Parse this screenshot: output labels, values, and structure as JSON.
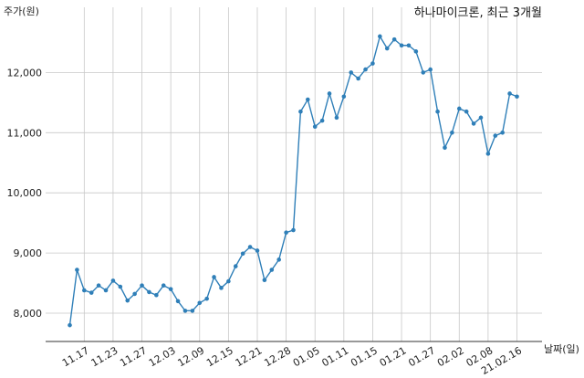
{
  "chart_data": {
    "type": "line",
    "title": "하나마이크론, 최근 3개월",
    "ylabel": "주가(원)",
    "xlabel": "날짜(일)",
    "ylim": [
      7550,
      12700
    ],
    "yticks": [
      8000,
      9000,
      10000,
      11000,
      12000
    ],
    "ytick_labels": [
      "8,000",
      "9,000",
      "10,000",
      "11,000",
      "12,000"
    ],
    "xtick_labels": [
      "11.17",
      "11.23",
      "11.27",
      "12.03",
      "12.09",
      "12.15",
      "12.21",
      "12.28",
      "01.05",
      "01.11",
      "01.15",
      "01.21",
      "01.27",
      "02.02",
      "02.08",
      "21.02.16"
    ],
    "xtick_index": [
      2,
      6,
      10,
      14,
      18,
      22,
      26,
      30,
      34,
      38,
      42,
      46,
      50,
      54,
      58,
      62
    ],
    "grid": true,
    "color": "#2f7fb8",
    "series": [
      {
        "values": [
          7800,
          8720,
          8380,
          8340,
          8460,
          8380,
          8540,
          8440,
          8210,
          8320,
          8460,
          8350,
          8300,
          8460,
          8400,
          8200,
          8040,
          8040,
          8170,
          8240,
          8600,
          8420,
          8530,
          8780,
          8990,
          9100,
          9040,
          8550,
          8720,
          8890,
          9340,
          9380,
          11350,
          11550,
          11100,
          11200,
          11650,
          11250,
          11600,
          12000,
          11900,
          12050,
          12150,
          12600,
          12400,
          12550,
          12450,
          12450,
          12350,
          12000,
          12050,
          11350,
          10750,
          11000,
          11400,
          11350,
          11150,
          11250,
          10650,
          10950,
          11000,
          11650,
          11600
        ]
      }
    ]
  }
}
